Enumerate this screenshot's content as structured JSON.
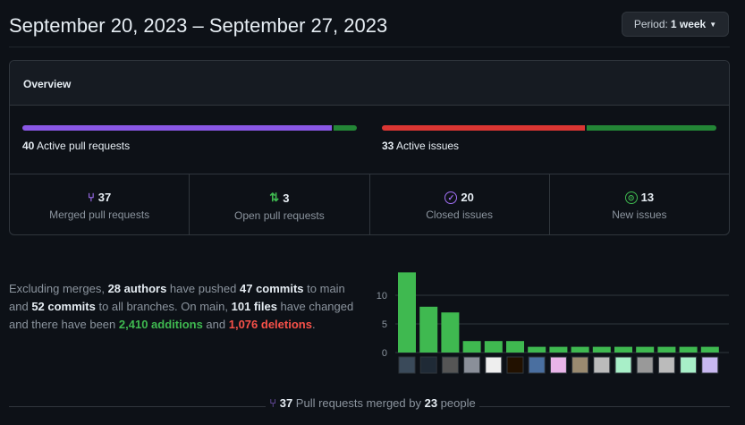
{
  "header": {
    "title": "September 20, 2023 – September 27, 2023",
    "period_label": "Period:",
    "period_value": "1 week"
  },
  "overview": {
    "title": "Overview",
    "pull_requests": {
      "count": "40",
      "label": "Active pull requests",
      "merged_fraction": 0.925,
      "colors": [
        "#8957e5",
        "#238636"
      ]
    },
    "issues": {
      "count": "33",
      "label": "Active issues",
      "closed_fraction": 0.606,
      "colors": [
        "#da3633",
        "#238636"
      ]
    },
    "stats": [
      {
        "icon": "git-merge-icon",
        "value": "37",
        "label": "Merged pull requests",
        "color": "#a371f7"
      },
      {
        "icon": "git-pull-request-icon",
        "value": "3",
        "label": "Open pull requests",
        "color": "#3fb950"
      },
      {
        "icon": "issue-closed-icon",
        "value": "20",
        "label": "Closed issues",
        "color": "#a371f7"
      },
      {
        "icon": "issue-opened-icon",
        "value": "13",
        "label": "New issues",
        "color": "#3fb950"
      }
    ]
  },
  "summary": {
    "t1": "Excluding merges, ",
    "authors": "28 authors",
    "t2": " have pushed ",
    "commits": "47 commits",
    "t3": " to main and ",
    "branch_commits": "52 commits",
    "t4": " to all branches. On main, ",
    "files": "101 files",
    "t5": " have changed and there have been ",
    "additions": "2,410 additions",
    "t6": " and ",
    "deletions": "1,076 deletions",
    "t7": "."
  },
  "chart_data": {
    "type": "bar",
    "xlabel": "",
    "ylabel": "",
    "ylim": [
      0,
      14
    ],
    "yticks": [
      "0",
      "5",
      "10"
    ],
    "grid": true,
    "bar_color": "#3fb950",
    "values": [
      14,
      8,
      7,
      2,
      2,
      2,
      1,
      1,
      1,
      1,
      1,
      1,
      1,
      1,
      1
    ],
    "categories_note": "author avatars"
  },
  "footer": {
    "merged": "37",
    "t1": " Pull requests merged by ",
    "people": "23",
    "t2": " people"
  }
}
